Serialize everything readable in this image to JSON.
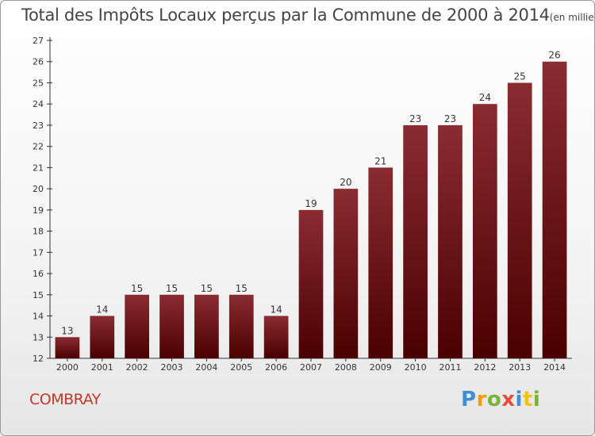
{
  "title": "Total des Impôts Locaux perçus par la Commune de 2000 à 2014",
  "unit_note": "(en milliers d'€)",
  "commune": "COMBRAY",
  "logo": "Proxiti",
  "colors": {
    "bar_top": "#8a2c32",
    "bar_bottom": "#4a0000",
    "commune_text": "#c0392b"
  },
  "chart_data": {
    "type": "bar",
    "title": "Total des Impôts Locaux perçus par la Commune de 2000 à 2014",
    "ylabel": "en milliers d'€",
    "xlabel": "",
    "categories": [
      "2000",
      "2001",
      "2002",
      "2003",
      "2004",
      "2005",
      "2006",
      "2007",
      "2008",
      "2009",
      "2010",
      "2011",
      "2012",
      "2013",
      "2014"
    ],
    "values": [
      13,
      14,
      15,
      15,
      15,
      15,
      14,
      19,
      20,
      21,
      23,
      23,
      24,
      25,
      26
    ],
    "ylim": [
      12,
      27
    ],
    "yticks": [
      12,
      13,
      14,
      15,
      16,
      17,
      18,
      19,
      20,
      21,
      22,
      23,
      24,
      25,
      26,
      27
    ],
    "grid": false
  }
}
